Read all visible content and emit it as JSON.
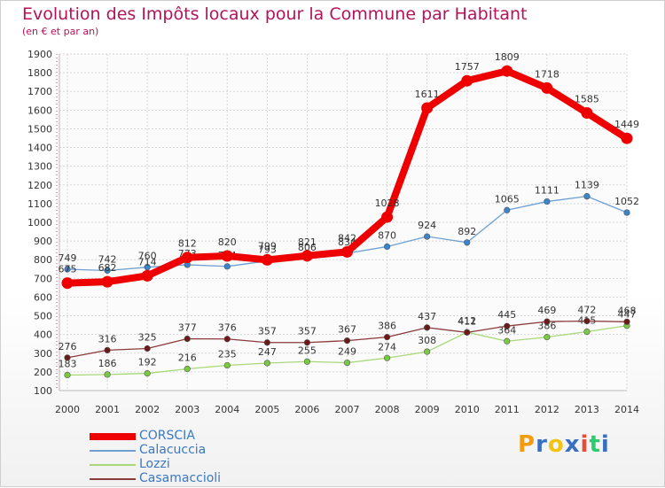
{
  "title": "Evolution des Impôts locaux pour la Commune par Habitant",
  "subtitle": "(en € et par an)",
  "logo": {
    "letters": [
      "P",
      "r",
      "o",
      "x",
      "i",
      "t",
      "i"
    ],
    "colors": [
      "#f39c12",
      "#3a6fc4",
      "#f1c40f",
      "#3a6fc4",
      "#e74c3c",
      "#2ecc71",
      "#3a6fc4"
    ]
  },
  "chart_data": {
    "type": "line",
    "x": [
      "2000",
      "2001",
      "2002",
      "2003",
      "2004",
      "2005",
      "2006",
      "2007",
      "2008",
      "2009",
      "2010",
      "2011",
      "2012",
      "2013",
      "2014"
    ],
    "ylim": [
      100,
      1900
    ],
    "yticks": [
      100,
      200,
      300,
      400,
      500,
      600,
      700,
      800,
      900,
      1000,
      1100,
      1200,
      1300,
      1400,
      1500,
      1600,
      1700,
      1800,
      1900
    ],
    "grid": true,
    "legend_position": "bottom-left",
    "series": [
      {
        "name": "Calacuccia",
        "color": "#6e9fd2",
        "marker": "#3a84c9",
        "weight": "thin",
        "values": [
          749,
          742,
          760,
          773,
          764,
          793,
          806,
          834,
          870,
          924,
          892,
          1065,
          1111,
          1139,
          1052
        ],
        "labels": [
          "749",
          "742",
          "760",
          "773",
          "764",
          "793",
          "806",
          "834",
          "870",
          "924",
          "892",
          "1065",
          "1111",
          "1139",
          "1052"
        ]
      },
      {
        "name": "Lozzi",
        "color": "#a8d87a",
        "marker": "#7ac943",
        "weight": "thin",
        "values": [
          183,
          186,
          192,
          216,
          235,
          247,
          255,
          249,
          274,
          308,
          412,
          364,
          386,
          415,
          447
        ],
        "labels": [
          "183",
          "186",
          "192",
          "216",
          "235",
          "247",
          "255",
          "249",
          "274",
          "308",
          "412",
          "364",
          "386",
          "415",
          "447"
        ]
      },
      {
        "name": "Casamaccioli",
        "color": "#8b3a3a",
        "marker": "#6b1a1a",
        "weight": "thin",
        "values": [
          276,
          316,
          325,
          377,
          376,
          357,
          357,
          367,
          386,
          437,
          411,
          445,
          469,
          472,
          468
        ],
        "labels": [
          "276",
          "316",
          "325",
          "377",
          "376",
          "357",
          "357",
          "367",
          "386",
          "437",
          "411",
          "445",
          "469",
          "472",
          "468"
        ]
      },
      {
        "name": "CORSCIA",
        "color": "#ee0000",
        "marker": "#ee0000",
        "weight": "thick",
        "values": [
          675,
          682,
          714,
          812,
          820,
          799,
          821,
          842,
          1028,
          1611,
          1757,
          1809,
          1718,
          1585,
          1449
        ],
        "labels": [
          "675",
          "682",
          "714",
          "812",
          "820",
          "799",
          "821",
          "842",
          "1028",
          "1611",
          "1757",
          "1809",
          "1718",
          "1585",
          "1449"
        ]
      }
    ]
  }
}
